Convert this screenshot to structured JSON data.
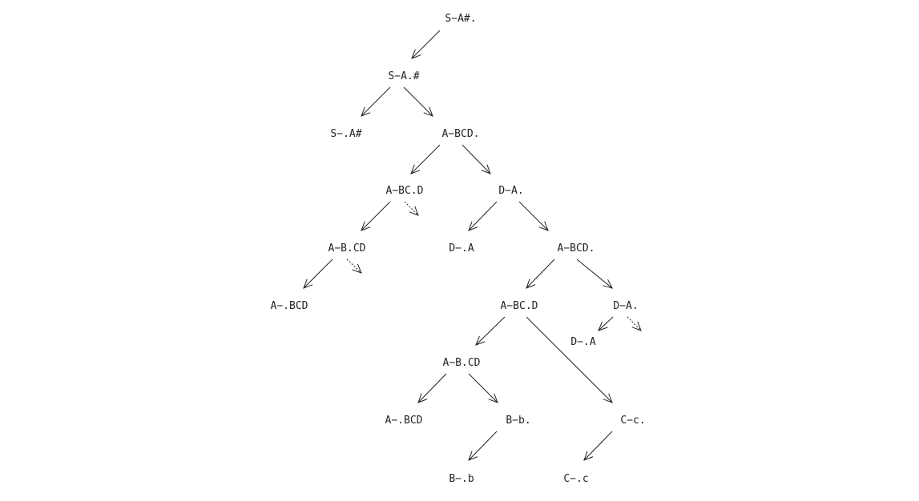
{
  "diagram": {
    "nodes": [
      {
        "id": "n1",
        "label": "S−A#."
      },
      {
        "id": "n2",
        "label": "S−A.#"
      },
      {
        "id": "n3",
        "label": "S−.A#"
      },
      {
        "id": "n4",
        "label": "A−BCD."
      },
      {
        "id": "n5",
        "label": "A−BC.D"
      },
      {
        "id": "n6",
        "label": "D−A."
      },
      {
        "id": "n7",
        "label": "A−B.CD"
      },
      {
        "id": "n8",
        "label": "D−.A"
      },
      {
        "id": "n9",
        "label": "A−BCD."
      },
      {
        "id": "n10",
        "label": "A−.BCD"
      },
      {
        "id": "n11",
        "label": "A−BC.D"
      },
      {
        "id": "n12",
        "label": "D−A."
      },
      {
        "id": "n13",
        "label": "D−.A"
      },
      {
        "id": "n14",
        "label": "A−B.CD"
      },
      {
        "id": "n15",
        "label": "A−.BCD"
      },
      {
        "id": "n16",
        "label": "B−b."
      },
      {
        "id": "n17",
        "label": "C−c."
      },
      {
        "id": "n18",
        "label": "B−.b"
      },
      {
        "id": "n19",
        "label": "C−.c"
      }
    ],
    "edges": [
      {
        "from": "n1",
        "to": "n2",
        "style": "solid"
      },
      {
        "from": "n2",
        "to": "n3",
        "style": "solid"
      },
      {
        "from": "n2",
        "to": "n4",
        "style": "solid"
      },
      {
        "from": "n4",
        "to": "n5",
        "style": "solid"
      },
      {
        "from": "n4",
        "to": "n6",
        "style": "solid"
      },
      {
        "from": "n5",
        "to": "n7",
        "style": "solid"
      },
      {
        "from": "n5",
        "to": null,
        "style": "dashed"
      },
      {
        "from": "n6",
        "to": "n8",
        "style": "solid"
      },
      {
        "from": "n6",
        "to": "n9",
        "style": "solid"
      },
      {
        "from": "n7",
        "to": "n10",
        "style": "solid"
      },
      {
        "from": "n7",
        "to": null,
        "style": "dashed"
      },
      {
        "from": "n9",
        "to": "n11",
        "style": "solid"
      },
      {
        "from": "n9",
        "to": "n12",
        "style": "solid"
      },
      {
        "from": "n11",
        "to": "n14",
        "style": "solid"
      },
      {
        "from": "n11",
        "to": "n17",
        "style": "solid"
      },
      {
        "from": "n12",
        "to": "n13",
        "style": "solid"
      },
      {
        "from": "n12",
        "to": null,
        "style": "dashed"
      },
      {
        "from": "n14",
        "to": "n15",
        "style": "solid"
      },
      {
        "from": "n14",
        "to": "n16",
        "style": "solid"
      },
      {
        "from": "n16",
        "to": "n18",
        "style": "solid"
      },
      {
        "from": "n17",
        "to": "n19",
        "style": "solid"
      }
    ],
    "colors": {
      "ink": "#222222",
      "background": "#ffffff"
    }
  }
}
